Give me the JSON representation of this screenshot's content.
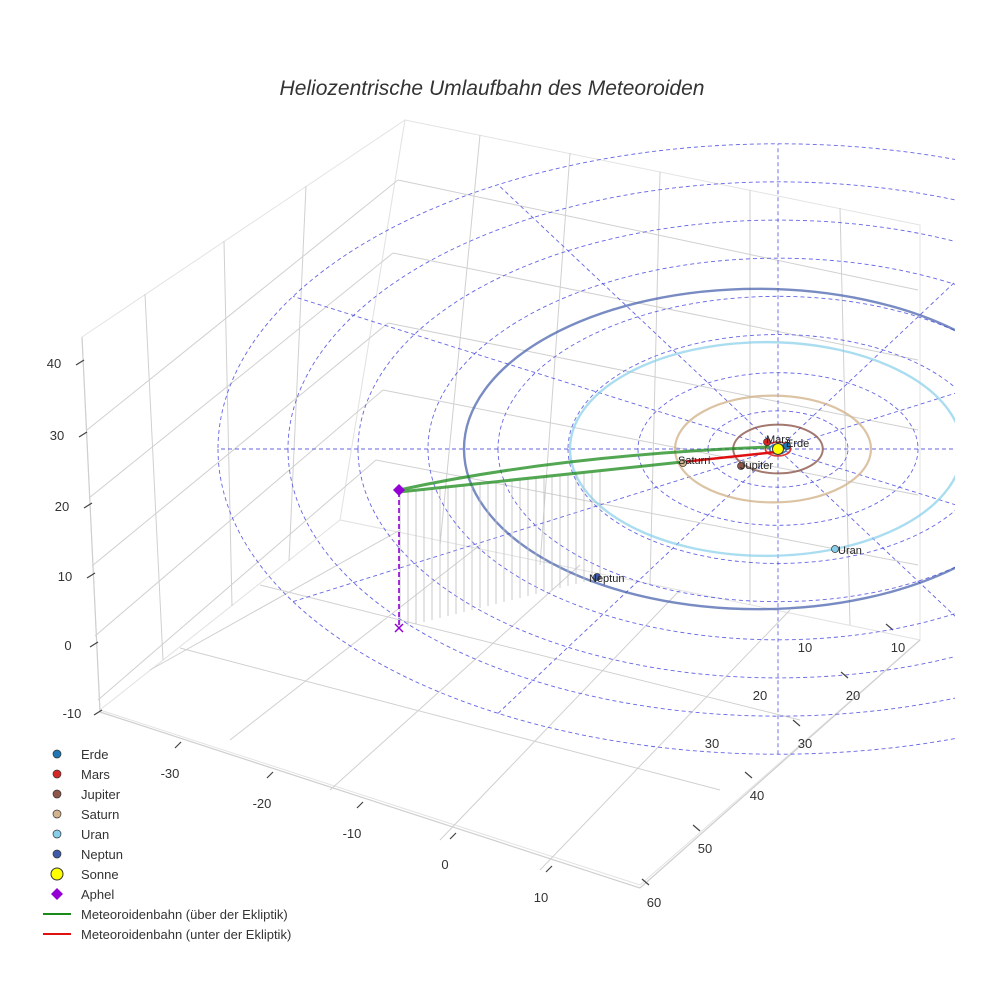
{
  "chart_data": {
    "type": "3d-orbit",
    "title": "Heliozentrische Umlaufbahn des Meteoroiden",
    "x_ticks": [
      -30,
      -20,
      -10,
      0,
      10
    ],
    "y_ticks": [
      10,
      20,
      30,
      40,
      50,
      60
    ],
    "z_ticks": [
      -10,
      0,
      10,
      20,
      30,
      40
    ],
    "inner_y_ticks": [
      10,
      20,
      30
    ],
    "legend_position": "bottom-left",
    "grid": true,
    "sun": {
      "label": "Sonne",
      "color": "#ffff00"
    },
    "planets": [
      {
        "name": "Erde",
        "color": "#1f77b4",
        "orbit_radius_au": 1.0
      },
      {
        "name": "Mars",
        "color": "#d62728",
        "orbit_radius_au": 1.52
      },
      {
        "name": "Jupiter",
        "color": "#8c564b",
        "orbit_radius_au": 5.2
      },
      {
        "name": "Saturn",
        "color": "#d2b48c",
        "orbit_radius_au": 9.58
      },
      {
        "name": "Uran",
        "color": "#87ceeb",
        "orbit_radius_au": 19.2
      },
      {
        "name": "Neptun",
        "color": "#3f5aa8",
        "orbit_radius_au": 30.1
      }
    ],
    "aphel": {
      "label": "Aphel",
      "color": "#9400d3",
      "x": -33.5,
      "y": 30.5,
      "z": 22
    },
    "meteoroid": {
      "above_label": "Meteoroidenbahn (über der Ekliptik)",
      "above_color": "#1a8a1a",
      "below_label": "Meteoroidenbahn (unter der Ekliptik)",
      "below_color": "#e01010"
    },
    "legend": [
      {
        "label": "Erde",
        "marker": "dot",
        "color": "#1f77b4"
      },
      {
        "label": "Mars",
        "marker": "dot",
        "color": "#d62728"
      },
      {
        "label": "Jupiter",
        "marker": "dot",
        "color": "#8c564b"
      },
      {
        "label": "Saturn",
        "marker": "dot",
        "color": "#d2b48c"
      },
      {
        "label": "Uran",
        "marker": "dot",
        "color": "#87ceeb"
      },
      {
        "label": "Neptun",
        "marker": "dot",
        "color": "#3f5aa8"
      },
      {
        "label": "Sonne",
        "marker": "sun",
        "color": "#ffff00"
      },
      {
        "label": "Aphel",
        "marker": "diamond",
        "color": "#9400d3"
      },
      {
        "label": "Meteoroidenbahn (über der Ekliptik)",
        "marker": "line",
        "color": "#1a8a1a"
      },
      {
        "label": "Meteoroidenbahn (unter der Ekliptik)",
        "marker": "line",
        "color": "#e01010"
      }
    ]
  }
}
